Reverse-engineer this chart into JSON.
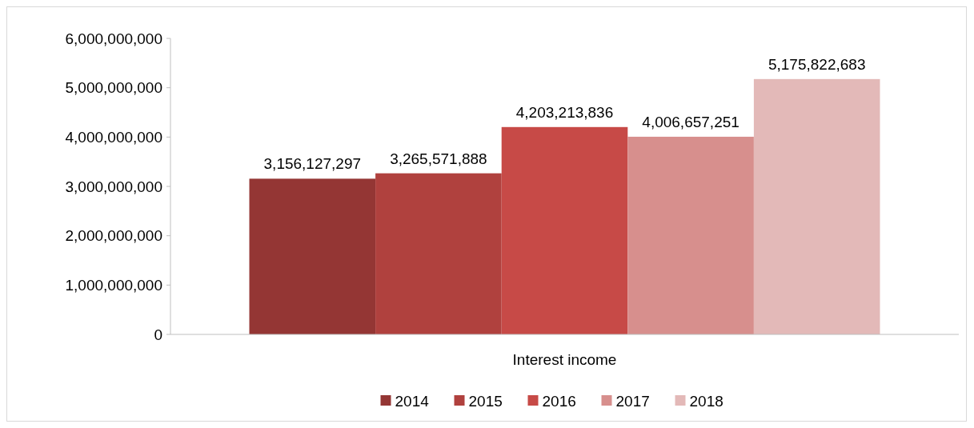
{
  "chart_data": {
    "type": "bar",
    "categories": [
      "Interest income"
    ],
    "series": [
      {
        "name": "2014",
        "color": "#943634",
        "values": [
          3156127297
        ],
        "value_labels": [
          "3,156,127,297"
        ]
      },
      {
        "name": "2015",
        "color": "#b0413e",
        "values": [
          3265571888
        ],
        "value_labels": [
          "3,265,571,888"
        ]
      },
      {
        "name": "2016",
        "color": "#c74a47",
        "values": [
          4203213836
        ],
        "value_labels": [
          "4,203,213,836"
        ]
      },
      {
        "name": "2017",
        "color": "#d78f8d",
        "values": [
          4006657251
        ],
        "value_labels": [
          "4,006,657,251"
        ]
      },
      {
        "name": "2018",
        "color": "#e3b9b8",
        "values": [
          5175822683
        ],
        "value_labels": [
          "5,175,822,683"
        ]
      }
    ],
    "ylim": [
      0,
      6000000000
    ],
    "yticks": [
      {
        "value": 0,
        "label": "0"
      },
      {
        "value": 1000000000,
        "label": "1,000,000,000"
      },
      {
        "value": 2000000000,
        "label": "2,000,000,000"
      },
      {
        "value": 3000000000,
        "label": "3,000,000,000"
      },
      {
        "value": 4000000000,
        "label": "4,000,000,000"
      },
      {
        "value": 5000000000,
        "label": "5,000,000,000"
      },
      {
        "value": 6000000000,
        "label": "6,000,000,000"
      }
    ],
    "grid": false,
    "legend": "bottom"
  }
}
